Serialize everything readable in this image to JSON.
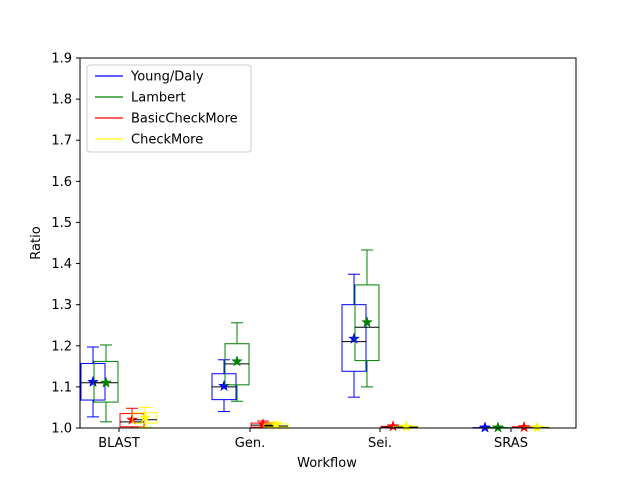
{
  "chart_data": {
    "type": "box",
    "xlabel": "Workflow",
    "ylabel": "Ratio",
    "ylim": [
      1.0,
      1.9
    ],
    "yticks": [
      1.0,
      1.1,
      1.2,
      1.3,
      1.4,
      1.5,
      1.6,
      1.7,
      1.8,
      1.9
    ],
    "categories": [
      "BLAST",
      "Gen.",
      "Sei.",
      "SRAS"
    ],
    "legend_position": "upper-left",
    "grid": false,
    "series": [
      {
        "name": "Young/Daly",
        "color": "#0000ff",
        "boxes": [
          {
            "whislo": 1.027,
            "q1": 1.068,
            "med": 1.11,
            "q3": 1.157,
            "whishi": 1.197,
            "mean": 1.112
          },
          {
            "whislo": 1.04,
            "q1": 1.069,
            "med": 1.1,
            "q3": 1.132,
            "whishi": 1.166,
            "mean": 1.102
          },
          {
            "whislo": 1.075,
            "q1": 1.138,
            "med": 1.21,
            "q3": 1.3,
            "whishi": 1.374,
            "mean": 1.217
          },
          {
            "whislo": 1.0,
            "q1": 1.0,
            "med": 1.0,
            "q3": 1.001,
            "whishi": 1.002,
            "mean": 1.001
          }
        ]
      },
      {
        "name": "Lambert",
        "color": "#008000",
        "boxes": [
          {
            "whislo": 1.015,
            "q1": 1.063,
            "med": 1.11,
            "q3": 1.162,
            "whishi": 1.202,
            "mean": 1.11
          },
          {
            "whislo": 1.065,
            "q1": 1.105,
            "med": 1.156,
            "q3": 1.205,
            "whishi": 1.256,
            "mean": 1.162
          },
          {
            "whislo": 1.1,
            "q1": 1.164,
            "med": 1.245,
            "q3": 1.348,
            "whishi": 1.433,
            "mean": 1.257
          },
          {
            "whislo": 1.0,
            "q1": 1.0,
            "med": 1.0,
            "q3": 1.001,
            "whishi": 1.002,
            "mean": 1.001
          }
        ]
      },
      {
        "name": "BasicCheckMore",
        "color": "#ff0000",
        "boxes": [
          {
            "whislo": 1.0,
            "q1": 1.003,
            "med": 1.015,
            "q3": 1.035,
            "whishi": 1.048,
            "mean": 1.02
          },
          {
            "whislo": 1.0,
            "q1": 1.002,
            "med": 1.007,
            "q3": 1.012,
            "whishi": 1.017,
            "mean": 1.009
          },
          {
            "whislo": 1.0,
            "q1": 1.0,
            "med": 1.002,
            "q3": 1.004,
            "whishi": 1.007,
            "mean": 1.004
          },
          {
            "whislo": 1.0,
            "q1": 1.0,
            "med": 1.001,
            "q3": 1.003,
            "whishi": 1.005,
            "mean": 1.002
          }
        ]
      },
      {
        "name": "CheckMore",
        "color": "#ffff00",
        "boxes": [
          {
            "whislo": 1.002,
            "q1": 1.012,
            "med": 1.02,
            "q3": 1.037,
            "whishi": 1.05,
            "mean": 1.025
          },
          {
            "whislo": 1.0,
            "q1": 1.002,
            "med": 1.005,
            "q3": 1.01,
            "whishi": 1.014,
            "mean": 1.007
          },
          {
            "whislo": 1.0,
            "q1": 1.0,
            "med": 1.002,
            "q3": 1.004,
            "whishi": 1.006,
            "mean": 1.003
          },
          {
            "whislo": 1.0,
            "q1": 1.0,
            "med": 1.001,
            "q3": 1.002,
            "whishi": 1.004,
            "mean": 1.001
          }
        ]
      }
    ]
  }
}
